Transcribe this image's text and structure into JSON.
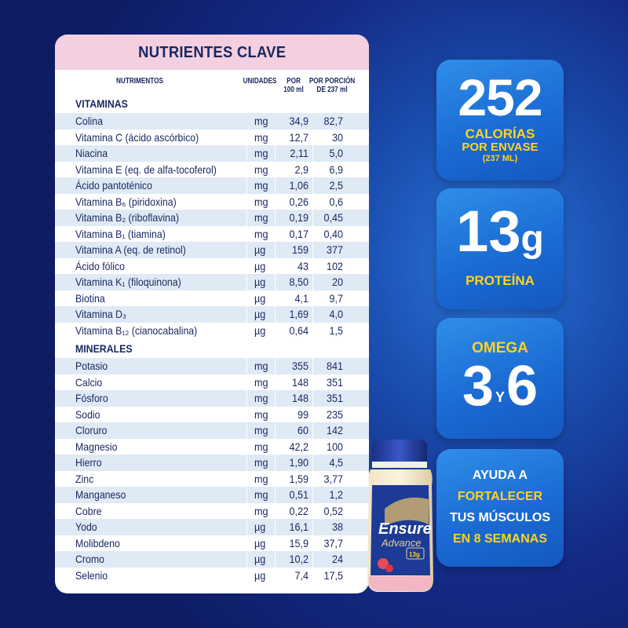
{
  "card": {
    "title": "NUTRIENTES CLAVE",
    "columns": {
      "nutrient": "NUTRIMENTOS",
      "unit": "UNIDADES",
      "per100_l1": "POR",
      "per100_l2": "100 ml",
      "perPortion_l1": "POR PORCIÓN",
      "perPortion_l2": "DE 237 ml"
    },
    "vitamins_label": "VITAMINAS",
    "vitamins": [
      {
        "name": "Colina",
        "unit": "mg",
        "per100": "34,9",
        "perPortion": "82,7"
      },
      {
        "name": "Vitamina C (ácido ascórbico)",
        "unit": "mg",
        "per100": "12,7",
        "perPortion": "30"
      },
      {
        "name": "Niacina",
        "unit": "mg",
        "per100": "2,11",
        "perPortion": "5,0"
      },
      {
        "name": "Vitamina E (eq. de alfa-tocoferol)",
        "unit": "mg",
        "per100": "2,9",
        "perPortion": "6,9"
      },
      {
        "name": "Ácido pantoténico",
        "unit": "mg",
        "per100": "1,06",
        "perPortion": "2,5"
      },
      {
        "name": "Vitamina B₆ (piridoxina)",
        "unit": "mg",
        "per100": "0,26",
        "perPortion": "0,6"
      },
      {
        "name": "Vitamina B₂ (riboflavina)",
        "unit": "mg",
        "per100": "0,19",
        "perPortion": "0,45"
      },
      {
        "name": "Vitamina B₁ (tiamina)",
        "unit": "mg",
        "per100": "0,17",
        "perPortion": "0,40"
      },
      {
        "name": "Vitamina A (eq. de retinol)",
        "unit": "µg",
        "per100": "159",
        "perPortion": "377"
      },
      {
        "name": "Ácido fólico",
        "unit": "µg",
        "per100": "43",
        "perPortion": "102"
      },
      {
        "name": "Vitamina K₁ (filoquinona)",
        "unit": "µg",
        "per100": "8,50",
        "perPortion": "20"
      },
      {
        "name": "Biotina",
        "unit": "µg",
        "per100": "4,1",
        "perPortion": "9,7"
      },
      {
        "name": "Vitamina D₃",
        "unit": "µg",
        "per100": "1,69",
        "perPortion": "4,0"
      },
      {
        "name": "Vitamina B₁₂ (cianocabalina)",
        "unit": "µg",
        "per100": "0,64",
        "perPortion": "1,5"
      }
    ],
    "minerals_label": "MINERALES",
    "minerals": [
      {
        "name": "Potasio",
        "unit": "mg",
        "per100": "355",
        "perPortion": "841"
      },
      {
        "name": "Calcio",
        "unit": "mg",
        "per100": "148",
        "perPortion": "351"
      },
      {
        "name": "Fósforo",
        "unit": "mg",
        "per100": "148",
        "perPortion": "351"
      },
      {
        "name": "Sodio",
        "unit": "mg",
        "per100": "99",
        "perPortion": "235"
      },
      {
        "name": "Cloruro",
        "unit": "mg",
        "per100": "60",
        "perPortion": "142"
      },
      {
        "name": "Magnesio",
        "unit": "mg",
        "per100": "42,2",
        "perPortion": "100"
      },
      {
        "name": "Hierro",
        "unit": "mg",
        "per100": "1,90",
        "perPortion": "4,5"
      },
      {
        "name": "Zinc",
        "unit": "mg",
        "per100": "1,59",
        "perPortion": "3,77"
      },
      {
        "name": "Manganeso",
        "unit": "mg",
        "per100": "0,51",
        "perPortion": "1,2"
      },
      {
        "name": "Cobre",
        "unit": "mg",
        "per100": "0,22",
        "perPortion": "0,52"
      },
      {
        "name": "Yodo",
        "unit": "µg",
        "per100": "16,1",
        "perPortion": "38"
      },
      {
        "name": "Molibdeno",
        "unit": "µg",
        "per100": "15,9",
        "perPortion": "37,7"
      },
      {
        "name": "Cromo",
        "unit": "µg",
        "per100": "10,2",
        "perPortion": "24"
      },
      {
        "name": "Selenio",
        "unit": "µg",
        "per100": "7,4",
        "perPortion": "17,5"
      }
    ]
  },
  "tiles": {
    "calories": {
      "number": "252",
      "line1": "CALORÍAS",
      "line2": "POR ENVASE",
      "line3": "(237 ML)"
    },
    "protein": {
      "number": "13",
      "unit": "g",
      "label": "PROTEÍNA"
    },
    "omega": {
      "label": "OMEGA",
      "n1": "3",
      "joiner": "Y",
      "n2": "6"
    },
    "muscles": {
      "line1": "AYUDA A",
      "line2": "FORTALECER",
      "line3": "TUS MÚSCULOS",
      "line4": "EN 8 SEMANAS"
    }
  },
  "bottle": {
    "brand": "Ensure",
    "sub_brand": "Advance",
    "label_badge": "13g"
  },
  "colors": {
    "navy_text": "#17275f",
    "header_pink": "#f4cfe0",
    "row_shade": "#dfeaf5",
    "accent_yellow": "#ffd41c",
    "tile_blue": "#1b6bd3"
  }
}
